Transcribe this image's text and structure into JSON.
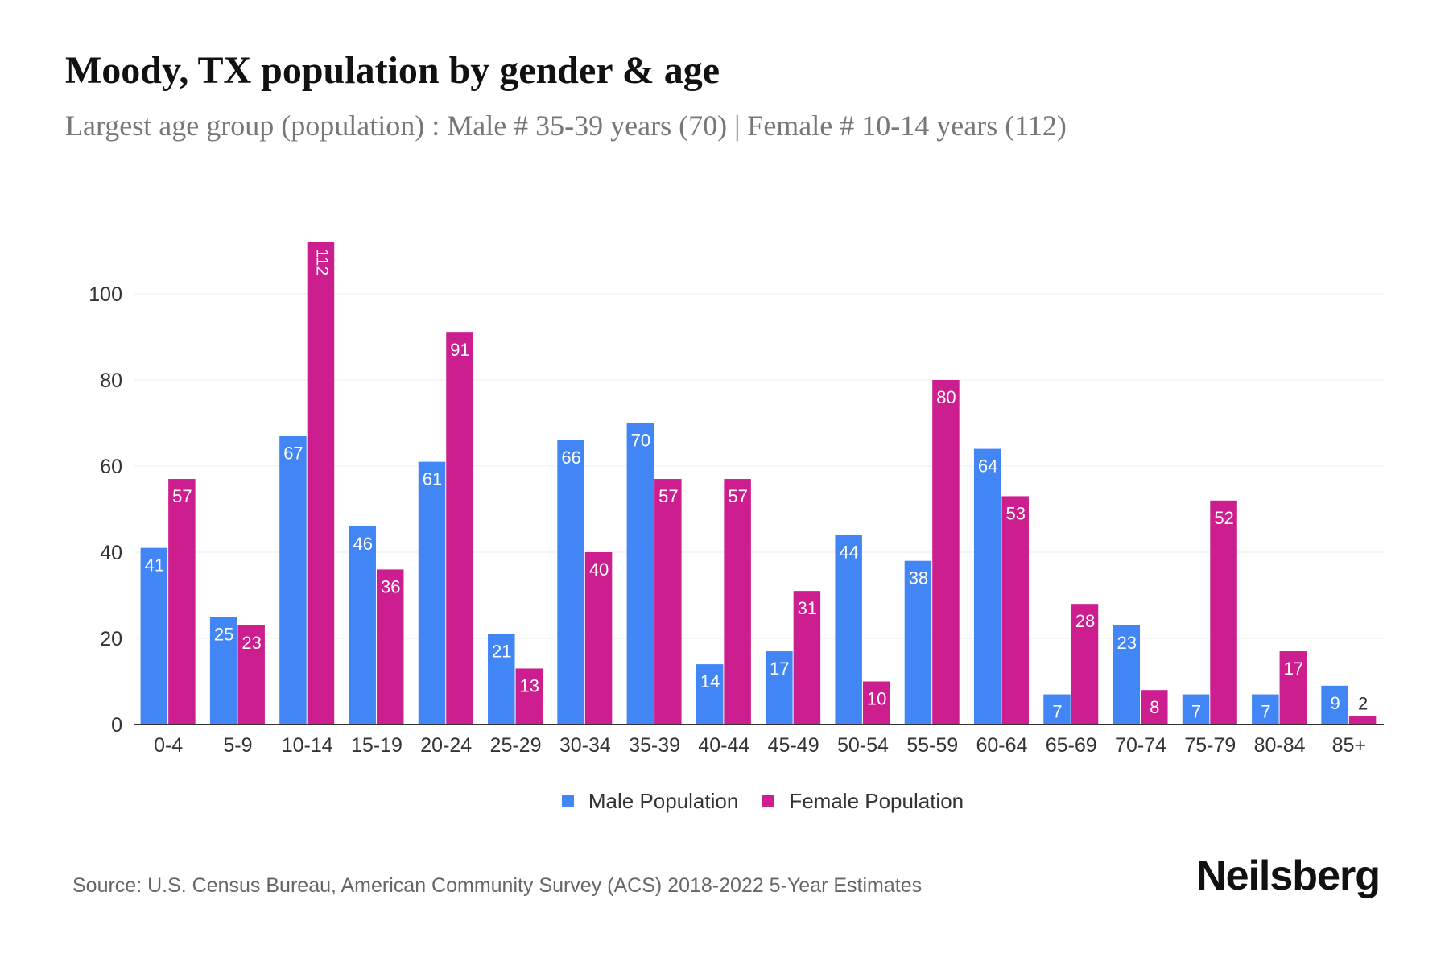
{
  "title": "Moody, TX population by gender & age",
  "subtitle": "Largest age group (population) : Male # 35-39 years (70) | Female # 10-14 years (112)",
  "source": "Source: U.S. Census Bureau, American Community Survey (ACS) 2018-2022 5-Year Estimates",
  "logo": "Neilsberg",
  "chart_data": {
    "type": "bar",
    "categories": [
      "0-4",
      "5-9",
      "10-14",
      "15-19",
      "20-24",
      "25-29",
      "30-34",
      "35-39",
      "40-44",
      "45-49",
      "50-54",
      "55-59",
      "60-64",
      "65-69",
      "70-74",
      "75-79",
      "80-84",
      "85+"
    ],
    "series": [
      {
        "name": "Male Population",
        "color": "#4285F4",
        "values": [
          41,
          25,
          67,
          46,
          61,
          21,
          66,
          70,
          14,
          17,
          44,
          38,
          64,
          7,
          23,
          7,
          7,
          9
        ]
      },
      {
        "name": "Female Population",
        "color": "#CC1E8E",
        "values": [
          57,
          23,
          112,
          36,
          91,
          13,
          40,
          57,
          57,
          31,
          10,
          80,
          53,
          28,
          8,
          52,
          17,
          2
        ]
      }
    ],
    "yticks": [
      0,
      20,
      40,
      60,
      80,
      100
    ],
    "ylim": [
      0,
      112
    ],
    "grid": true,
    "legend": "bottom"
  }
}
